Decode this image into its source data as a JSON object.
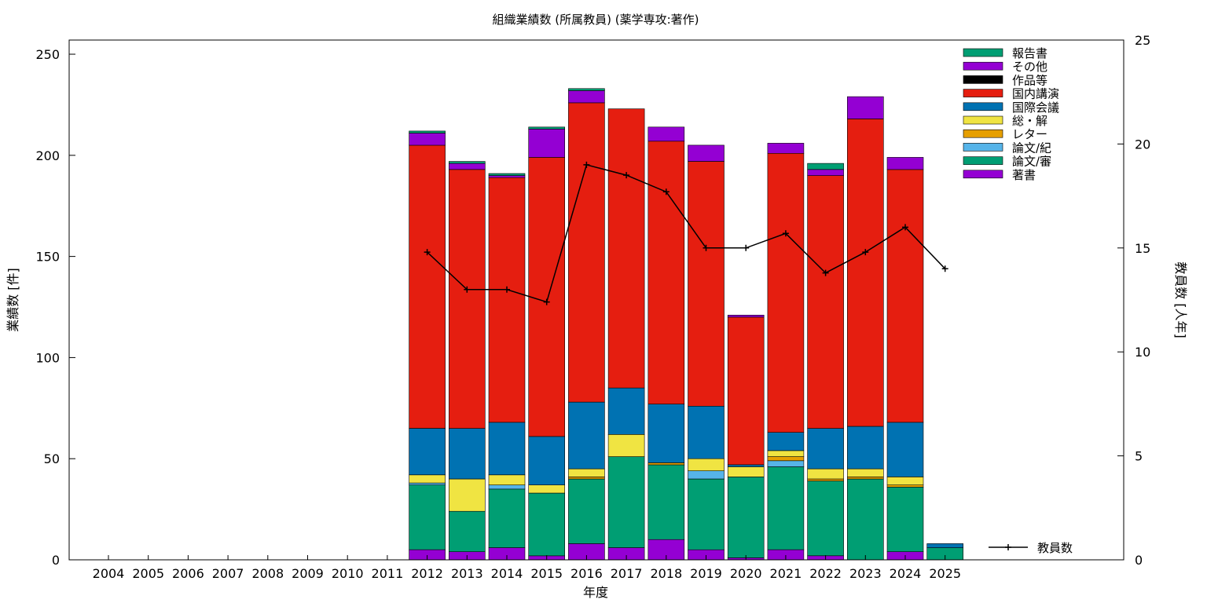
{
  "chart_data": {
    "type": "bar",
    "stacked": true,
    "title": "組織業績数 (所属教員) (薬学専攻:著作)",
    "xlabel": "年度",
    "ylabel": "業績数 [件]",
    "y2label": "教員数 [人年]",
    "ylim": [
      0,
      257
    ],
    "y2lim": [
      0,
      25
    ],
    "yticks": [
      "0",
      "50",
      "100",
      "150",
      "200",
      "250"
    ],
    "y2ticks": [
      "0",
      "5",
      "10",
      "15",
      "20",
      "25"
    ],
    "legend_position": "top-right",
    "categories": [
      "2004",
      "2005",
      "2006",
      "2007",
      "2008",
      "2009",
      "2010",
      "2011",
      "2012",
      "2013",
      "2014",
      "2015",
      "2016",
      "2017",
      "2018",
      "2019",
      "2020",
      "2021",
      "2022",
      "2023",
      "2024",
      "2025"
    ],
    "series": [
      {
        "name": "著書",
        "color": "#9400d3",
        "values": [
          0,
          0,
          0,
          0,
          0,
          0,
          0,
          0,
          5,
          4,
          6,
          2,
          8,
          6,
          10,
          5,
          1,
          5,
          2,
          0,
          4,
          0
        ]
      },
      {
        "name": "論文/審",
        "color": "#009e73",
        "values": [
          0,
          0,
          0,
          0,
          0,
          0,
          0,
          0,
          32,
          20,
          29,
          31,
          32,
          45,
          37,
          35,
          40,
          41,
          37,
          40,
          32,
          6
        ]
      },
      {
        "name": "論文/紀",
        "color": "#56b4e9",
        "values": [
          0,
          0,
          0,
          0,
          0,
          0,
          0,
          0,
          1,
          0,
          2,
          0,
          0,
          0,
          0,
          4,
          0,
          3,
          0,
          0,
          0,
          0
        ]
      },
      {
        "name": "レター",
        "color": "#e69f00",
        "values": [
          0,
          0,
          0,
          0,
          0,
          0,
          0,
          0,
          0,
          0,
          0,
          0,
          1,
          0,
          1,
          0,
          0,
          2,
          1,
          1,
          1,
          0
        ]
      },
      {
        "name": "総・解",
        "color": "#f0e442",
        "values": [
          0,
          0,
          0,
          0,
          0,
          0,
          0,
          0,
          4,
          16,
          5,
          4,
          4,
          11,
          0,
          6,
          5,
          3,
          5,
          4,
          4,
          0
        ]
      },
      {
        "name": "国際会議",
        "color": "#0072b2",
        "values": [
          0,
          0,
          0,
          0,
          0,
          0,
          0,
          0,
          23,
          25,
          26,
          24,
          33,
          23,
          29,
          26,
          1,
          9,
          20,
          21,
          27,
          2
        ]
      },
      {
        "name": "国内講演",
        "color": "#e51e10",
        "values": [
          0,
          0,
          0,
          0,
          0,
          0,
          0,
          0,
          140,
          128,
          121,
          138,
          148,
          138,
          130,
          121,
          73,
          138,
          125,
          152,
          125,
          0
        ]
      },
      {
        "name": "作品等",
        "color": "#000000",
        "values": [
          0,
          0,
          0,
          0,
          0,
          0,
          0,
          0,
          0,
          0,
          0,
          0,
          0,
          0,
          0,
          0,
          0,
          0,
          0,
          0,
          0,
          0
        ]
      },
      {
        "name": "その他",
        "color": "#9400d3",
        "values": [
          0,
          0,
          0,
          0,
          0,
          0,
          0,
          0,
          6,
          3,
          1,
          14,
          6,
          0,
          7,
          8,
          1,
          5,
          3,
          11,
          6,
          0
        ]
      },
      {
        "name": "報告書",
        "color": "#009e73",
        "values": [
          0,
          0,
          0,
          0,
          0,
          0,
          0,
          0,
          1,
          1,
          1,
          1,
          1,
          0,
          0,
          0,
          0,
          0,
          3,
          0,
          0,
          0
        ]
      }
    ],
    "line_series": {
      "name": "教員数",
      "color": "#000000",
      "axis": "y2",
      "x": [
        "2012",
        "2013",
        "2014",
        "2015",
        "2016",
        "2017",
        "2018",
        "2019",
        "2020",
        "2021",
        "2022",
        "2023",
        "2024",
        "2025"
      ],
      "values": [
        14.8,
        13.0,
        13.0,
        12.4,
        19.0,
        18.5,
        17.7,
        15.0,
        15.0,
        15.7,
        13.8,
        14.8,
        16.0,
        14.0
      ]
    }
  }
}
